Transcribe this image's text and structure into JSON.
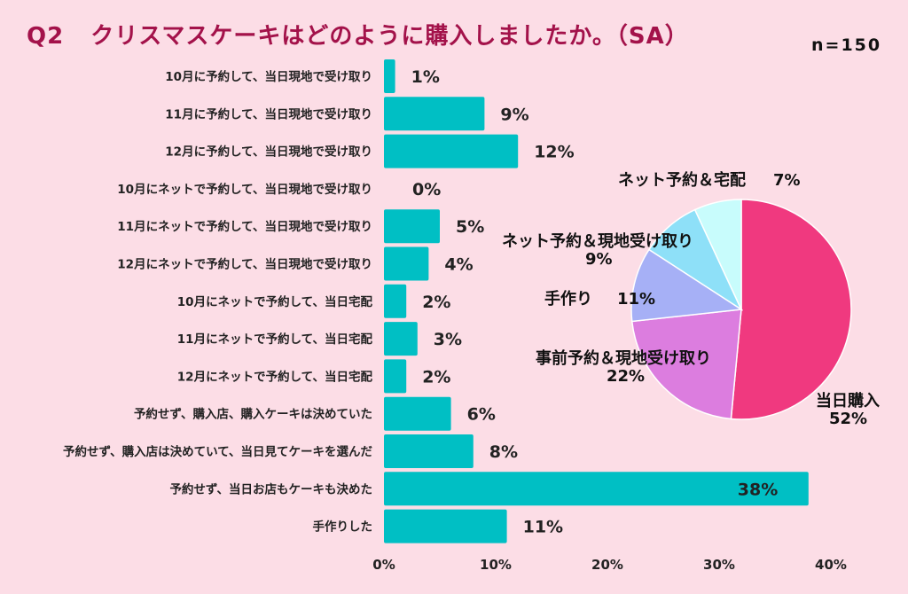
{
  "title": {
    "q": "Q2",
    "text": "クリスマスケーキはどのように購入しましたか。（SA）"
  },
  "n_label": "n=150",
  "chart_data": [
    {
      "type": "bar",
      "orientation": "horizontal",
      "categories": [
        "10月に予約して、当日現地で受け取り",
        "11月に予約して、当日現地で受け取り",
        "12月に予約して、当日現地で受け取り",
        "10月にネットで予約して、当日現地で受け取り",
        "11月にネットで予約して、当日現地で受け取り",
        "12月にネットで予約して、当日現地で受け取り",
        "10月にネットで予約して、当日宅配",
        "11月にネットで予約して、当日宅配",
        "12月にネットで予約して、当日宅配",
        "予約せず、購入店、購入ケーキは決めていた",
        "予約せず、購入店は決めていて、当日見てケーキを選んだ",
        "予約せず、当日お店もケーキも決めた",
        "手作りした"
      ],
      "values": [
        1,
        9,
        12,
        0,
        5,
        4,
        2,
        3,
        2,
        6,
        8,
        38,
        11
      ],
      "data_labels": [
        "1%",
        "9%",
        "12%",
        "0%",
        "5%",
        "4%",
        "2%",
        "3%",
        "2%",
        "6%",
        "8%",
        "38%",
        "11%"
      ],
      "xlim": [
        0,
        40
      ],
      "xticks": [
        "0%",
        "10%",
        "20%",
        "30%",
        "40%"
      ],
      "color": "#00bfc4",
      "grid": false
    },
    {
      "type": "pie",
      "slices": [
        {
          "label": "当日購入",
          "value": 52,
          "value_label": "52%",
          "color": "#f0397f"
        },
        {
          "label": "事前予約＆現地受け取り",
          "value": 22,
          "value_label": "22%",
          "color": "#dc7ddf"
        },
        {
          "label": "手作り",
          "value": 11,
          "value_label": "11%",
          "color": "#a6b0f6"
        },
        {
          "label": "ネット予約＆現地受け取り",
          "value": 9,
          "value_label": "9%",
          "color": "#8ee0f8"
        },
        {
          "label": "ネット予約＆宅配",
          "value": 7,
          "value_label": "7%",
          "color": "#c8fcfc"
        }
      ]
    }
  ]
}
